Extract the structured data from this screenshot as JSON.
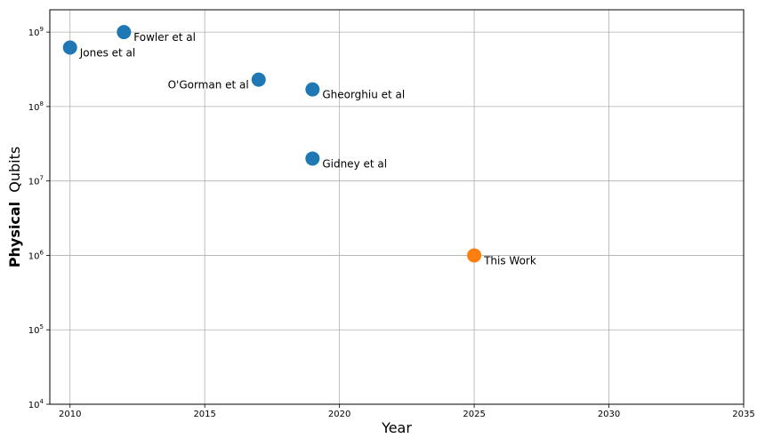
{
  "chart_data": {
    "type": "scatter",
    "title": "",
    "xlabel": "Year",
    "ylabel_bold": "Physical",
    "ylabel_rest": "Qubits",
    "xlim": [
      2009.25,
      2035
    ],
    "ylim_log10": [
      4,
      9.3
    ],
    "y_scale": "log",
    "grid": true,
    "x_ticks": [
      2010,
      2015,
      2020,
      2025,
      2030,
      2035
    ],
    "y_ticks_exponents": [
      4,
      5,
      6,
      7,
      8,
      9
    ],
    "y_tick_base": "10",
    "colors": {
      "prior": "#1f77b4",
      "this_work": "#ff7f0e"
    },
    "points": [
      {
        "label": "Jones et al",
        "x": 2010,
        "y": 620000000,
        "series": "prior",
        "label_side": "right"
      },
      {
        "label": "Fowler et al",
        "x": 2012,
        "y": 1000000000,
        "series": "prior",
        "label_side": "right"
      },
      {
        "label": "O'Gorman et al",
        "x": 2017,
        "y": 230000000,
        "series": "prior",
        "label_side": "left"
      },
      {
        "label": "Gheorghiu et al",
        "x": 2019,
        "y": 170000000,
        "series": "prior",
        "label_side": "right"
      },
      {
        "label": "Gidney et al",
        "x": 2019,
        "y": 20000000,
        "series": "prior",
        "label_side": "right"
      },
      {
        "label": "This Work",
        "x": 2025,
        "y": 1000000,
        "series": "this_work",
        "label_side": "right"
      }
    ]
  }
}
